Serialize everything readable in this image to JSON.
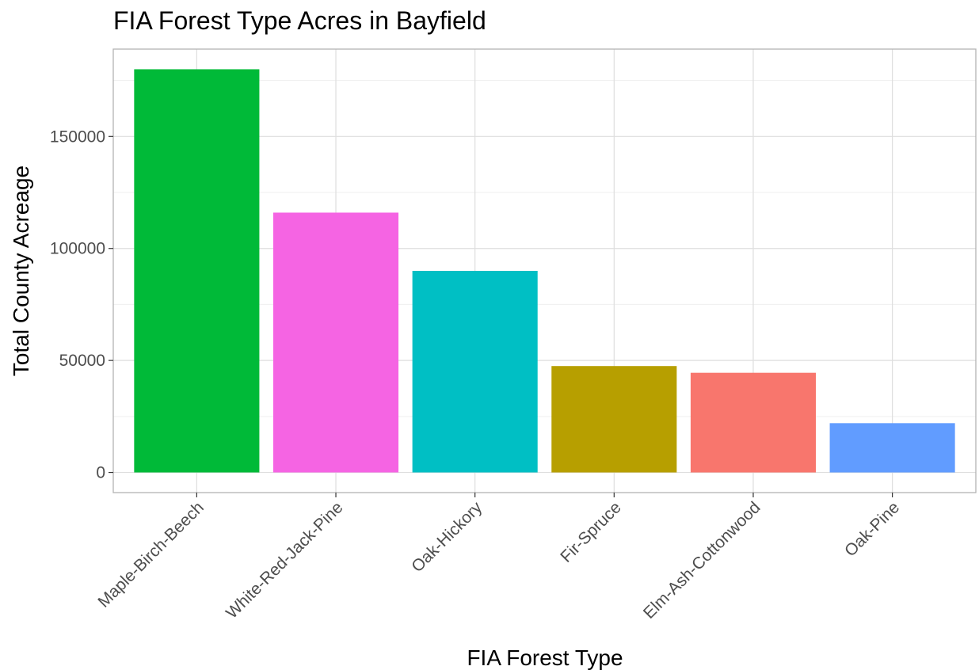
{
  "chart_data": {
    "type": "bar",
    "title": "FIA Forest Type Acres in Bayfield",
    "xlabel": "FIA Forest Type",
    "ylabel": "Total County Acreage",
    "categories": [
      "Maple-Birch-Beech",
      "White-Red-Jack-Pine",
      "Oak-Hickory",
      "Fir-Spruce",
      "Elm-Ash-Cottonwood",
      "Oak-Pine"
    ],
    "values": [
      180000,
      116000,
      90000,
      47500,
      44500,
      22000
    ],
    "bar_colors": [
      "#00ba38",
      "#f564e3",
      "#00bfc4",
      "#b79f00",
      "#f8766d",
      "#619cff"
    ],
    "ylim": [
      -9000,
      189000
    ],
    "y_ticks": [
      0,
      50000,
      100000,
      150000
    ],
    "y_tick_labels": [
      "0",
      "50000",
      "100000",
      "150000"
    ],
    "y_minor_ticks": [
      25000,
      75000,
      125000,
      175000
    ],
    "grid": true,
    "legend": "none",
    "colors": {
      "grid_major": "#dedede",
      "grid_minor": "#efefef",
      "panel_border": "#b3b3b3",
      "tick": "#333333"
    }
  }
}
